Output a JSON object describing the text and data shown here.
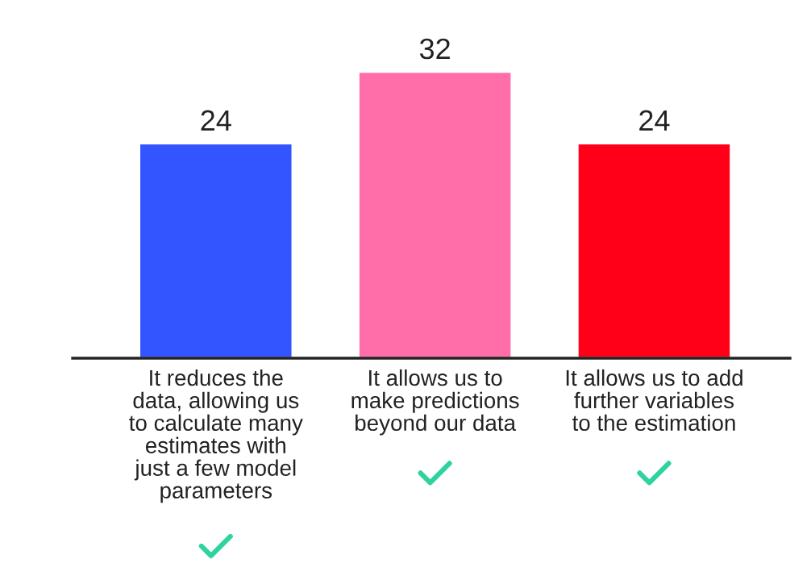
{
  "chart_data": {
    "type": "bar",
    "categories": [
      "It reduces the\ndata, allowing us\nto calculate many\nestimates with\njust a few model\nparameters",
      "It allows us to\nmake predictions\nbeyond our data",
      "It allows us to add\nfurther variables\nto the estimation"
    ],
    "values": [
      24,
      32,
      24
    ],
    "colors": [
      "#3355ff",
      "#ff6ea8",
      "#ff0018"
    ],
    "data_labels": true,
    "grid": false,
    "legend": false
  }
}
